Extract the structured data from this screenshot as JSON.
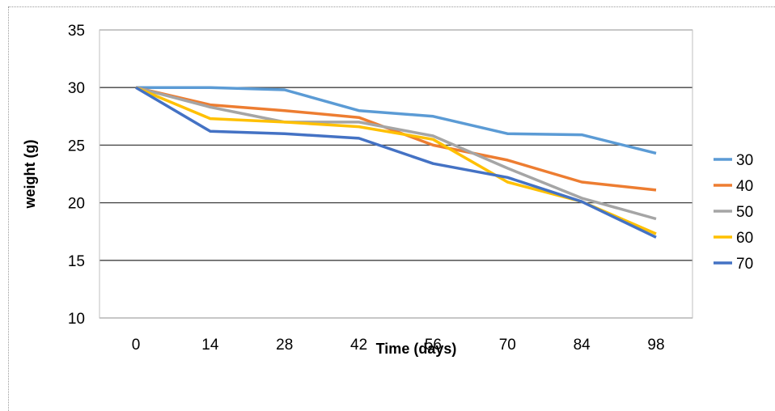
{
  "chart_data": {
    "type": "line",
    "xlabel": "Time (days)",
    "ylabel": "weight (g)",
    "title": "",
    "x": [
      0,
      14,
      28,
      42,
      56,
      70,
      84,
      98
    ],
    "ylim": [
      10,
      35
    ],
    "yticks": [
      10,
      15,
      20,
      25,
      30,
      35
    ],
    "grid": true,
    "legend_position": "right",
    "series": [
      {
        "name": "30",
        "color": "#5B9BD5",
        "values": [
          30,
          30,
          29.8,
          28,
          27.5,
          26,
          25.9,
          24.3
        ]
      },
      {
        "name": "40",
        "color": "#ED7D31",
        "values": [
          30,
          28.5,
          28,
          27.4,
          25,
          23.7,
          21.8,
          21.1
        ]
      },
      {
        "name": "50",
        "color": "#A5A5A5",
        "values": [
          30,
          28.3,
          27,
          27,
          25.8,
          23,
          20.4,
          18.6
        ]
      },
      {
        "name": "60",
        "color": "#FFC000",
        "values": [
          30,
          27.3,
          27,
          26.6,
          25.5,
          21.8,
          20.1,
          17.3
        ]
      },
      {
        "name": "70",
        "color": "#4472C4",
        "values": [
          30,
          26.2,
          26,
          25.6,
          23.4,
          22.2,
          20.1,
          17
        ]
      }
    ]
  }
}
